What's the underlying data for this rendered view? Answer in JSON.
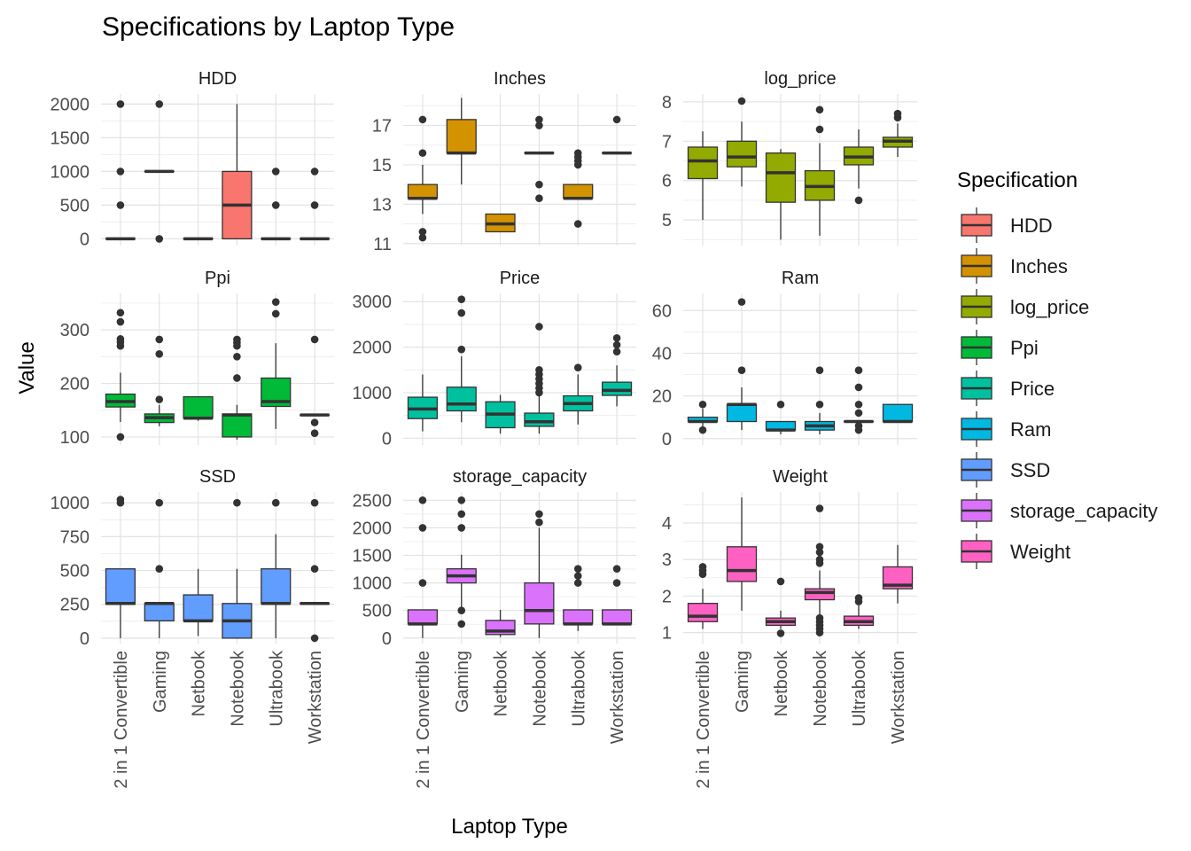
{
  "chart_data": {
    "type": "boxplot",
    "title": "Specifications by Laptop Type",
    "xlabel": "Laptop Type",
    "ylabel": "Value",
    "legend_title": "Specification",
    "legend_position": "right",
    "grid": true,
    "categories": [
      "2 in 1 Convertible",
      "Gaming",
      "Netbook",
      "Notebook",
      "Ultrabook",
      "Workstation"
    ],
    "panels": [
      {
        "name": "HDD",
        "color": "#F8766D",
        "ylim": [
          -100,
          2150
        ],
        "yticks": [
          0,
          500,
          1000,
          1500,
          2000
        ],
        "boxes": [
          {
            "q1": 0,
            "med": 0,
            "q3": 0,
            "lo": 0,
            "hi": 0,
            "out": [
              500,
              1000,
              2000
            ]
          },
          {
            "q1": 1000,
            "med": 1000,
            "q3": 1000,
            "lo": 1000,
            "hi": 1000,
            "out": [
              0,
              2000
            ]
          },
          {
            "q1": 0,
            "med": 0,
            "q3": 0,
            "lo": 0,
            "hi": 0,
            "out": []
          },
          {
            "q1": 0,
            "med": 500,
            "q3": 1000,
            "lo": 0,
            "hi": 2000,
            "out": []
          },
          {
            "q1": 0,
            "med": 0,
            "q3": 0,
            "lo": 0,
            "hi": 0,
            "out": [
              500,
              1000
            ]
          },
          {
            "q1": 0,
            "med": 0,
            "q3": 0,
            "lo": 0,
            "hi": 0,
            "out": [
              500,
              1000
            ]
          }
        ]
      },
      {
        "name": "Inches",
        "color": "#D39200",
        "ylim": [
          10.9,
          18.6
        ],
        "yticks": [
          11,
          13,
          15,
          17
        ],
        "boxes": [
          {
            "q1": 13.3,
            "med": 13.3,
            "q3": 14.0,
            "lo": 12.5,
            "hi": 15.0,
            "out": [
              11.3,
              11.6,
              15.6,
              17.3
            ]
          },
          {
            "q1": 15.6,
            "med": 15.6,
            "q3": 17.3,
            "lo": 14.0,
            "hi": 18.4,
            "out": []
          },
          {
            "q1": 11.6,
            "med": 12.0,
            "q3": 12.5,
            "lo": 11.6,
            "hi": 12.5,
            "out": []
          },
          {
            "q1": 15.6,
            "med": 15.6,
            "q3": 15.6,
            "lo": 15.6,
            "hi": 15.6,
            "out": [
              13.3,
              14.0,
              17.0,
              17.3
            ]
          },
          {
            "q1": 13.3,
            "med": 13.3,
            "q3": 14.0,
            "lo": 13.3,
            "hi": 14.0,
            "out": [
              12.0,
              15.0,
              15.2,
              15.4,
              15.6
            ]
          },
          {
            "q1": 15.6,
            "med": 15.6,
            "q3": 15.6,
            "lo": 15.6,
            "hi": 15.6,
            "out": [
              17.3
            ]
          }
        ]
      },
      {
        "name": "log_price",
        "color": "#93AA00",
        "ylim": [
          4.35,
          8.2
        ],
        "yticks": [
          5,
          6,
          7,
          8
        ],
        "boxes": [
          {
            "q1": 6.05,
            "med": 6.5,
            "q3": 6.85,
            "lo": 5.0,
            "hi": 7.25,
            "out": []
          },
          {
            "q1": 6.35,
            "med": 6.6,
            "q3": 7.0,
            "lo": 5.85,
            "hi": 7.5,
            "out": [
              8.02
            ]
          },
          {
            "q1": 5.45,
            "med": 6.2,
            "q3": 6.7,
            "lo": 4.5,
            "hi": 6.8,
            "out": []
          },
          {
            "q1": 5.5,
            "med": 5.85,
            "q3": 6.25,
            "lo": 4.6,
            "hi": 6.95,
            "out": [
              7.3,
              7.8
            ]
          },
          {
            "q1": 6.4,
            "med": 6.6,
            "q3": 6.85,
            "lo": 5.8,
            "hi": 7.3,
            "out": [
              5.5
            ]
          },
          {
            "q1": 6.85,
            "med": 7.0,
            "q3": 7.1,
            "lo": 6.6,
            "hi": 7.45,
            "out": [
              7.6,
              7.7
            ]
          }
        ]
      },
      {
        "name": "Ppi",
        "color": "#00BA38",
        "ylim": [
          85,
          368
        ],
        "yticks": [
          100,
          200,
          300
        ],
        "boxes": [
          {
            "q1": 156,
            "med": 166,
            "q3": 180,
            "lo": 128,
            "hi": 220,
            "out": [
              100,
              270,
              277,
              283,
              315,
              332
            ]
          },
          {
            "q1": 127,
            "med": 136,
            "q3": 143,
            "lo": 120,
            "hi": 160,
            "out": [
              170,
              255,
              282
            ]
          },
          {
            "q1": 135,
            "med": 135,
            "q3": 175,
            "lo": 130,
            "hi": 175,
            "out": []
          },
          {
            "q1": 100,
            "med": 141,
            "q3": 143,
            "lo": 95,
            "hi": 160,
            "out": [
              210,
              250,
              270,
              276,
              282
            ]
          },
          {
            "q1": 157,
            "med": 166,
            "q3": 210,
            "lo": 115,
            "hi": 275,
            "out": [
              330,
              352
            ]
          },
          {
            "q1": 141,
            "med": 141,
            "q3": 141,
            "lo": 141,
            "hi": 141,
            "out": [
              107,
              127,
              282
            ]
          }
        ]
      },
      {
        "name": "Price",
        "color": "#00C19F",
        "ylim": [
          -150,
          3180
        ],
        "yticks": [
          0,
          1000,
          2000,
          3000
        ],
        "boxes": [
          {
            "q1": 430,
            "med": 640,
            "q3": 900,
            "lo": 150,
            "hi": 1400,
            "out": []
          },
          {
            "q1": 600,
            "med": 750,
            "q3": 1120,
            "lo": 350,
            "hi": 1800,
            "out": [
              1950,
              2750,
              3050
            ]
          },
          {
            "q1": 230,
            "med": 530,
            "q3": 800,
            "lo": 100,
            "hi": 950,
            "out": []
          },
          {
            "q1": 260,
            "med": 360,
            "q3": 550,
            "lo": 100,
            "hi": 950,
            "out": [
              1000,
              1100,
              1200,
              1300,
              1400,
              1500,
              2450
            ]
          },
          {
            "q1": 600,
            "med": 760,
            "q3": 930,
            "lo": 300,
            "hi": 1400,
            "out": [
              1550
            ]
          },
          {
            "q1": 940,
            "med": 1050,
            "q3": 1230,
            "lo": 700,
            "hi": 1600,
            "out": [
              1900,
              2050,
              2200
            ]
          }
        ]
      },
      {
        "name": "Ram",
        "color": "#00B9E3",
        "ylim": [
          -3,
          68
        ],
        "yticks": [
          0,
          20,
          40,
          60
        ],
        "boxes": [
          {
            "q1": 8,
            "med": 8,
            "q3": 10,
            "lo": 4,
            "hi": 14,
            "out": [
              4,
              16
            ]
          },
          {
            "q1": 8,
            "med": 16,
            "q3": 16,
            "lo": 4,
            "hi": 24,
            "out": [
              32,
              64
            ]
          },
          {
            "q1": 4,
            "med": 4,
            "q3": 8,
            "lo": 2,
            "hi": 8,
            "out": [
              16
            ]
          },
          {
            "q1": 4,
            "med": 6,
            "q3": 8,
            "lo": 2,
            "hi": 12,
            "out": [
              16,
              32
            ]
          },
          {
            "q1": 8,
            "med": 8,
            "q3": 8,
            "lo": 8,
            "hi": 8,
            "out": [
              4,
              6,
              12,
              16,
              24,
              32
            ]
          },
          {
            "q1": 8,
            "med": 8,
            "q3": 16,
            "lo": 8,
            "hi": 16,
            "out": []
          }
        ]
      },
      {
        "name": "SSD",
        "color": "#619CFF",
        "ylim": [
          -40,
          1080
        ],
        "yticks": [
          0,
          250,
          500,
          750,
          1000
        ],
        "boxes": [
          {
            "q1": 250,
            "med": 256,
            "q3": 512,
            "lo": 0,
            "hi": 512,
            "out": [
              1000,
              1024
            ]
          },
          {
            "q1": 128,
            "med": 256,
            "q3": 256,
            "lo": 0,
            "hi": 256,
            "out": [
              512,
              1000
            ]
          },
          {
            "q1": 128,
            "med": 128,
            "q3": 320,
            "lo": 16,
            "hi": 512,
            "out": []
          },
          {
            "q1": 0,
            "med": 128,
            "q3": 256,
            "lo": 0,
            "hi": 512,
            "out": [
              1000
            ]
          },
          {
            "q1": 256,
            "med": 256,
            "q3": 512,
            "lo": 0,
            "hi": 768,
            "out": [
              1000
            ]
          },
          {
            "q1": 256,
            "med": 256,
            "q3": 256,
            "lo": 256,
            "hi": 256,
            "out": [
              0,
              512,
              1000
            ]
          }
        ]
      },
      {
        "name": "storage_capacity",
        "color": "#DB72FB",
        "ylim": [
          -100,
          2650
        ],
        "yticks": [
          0,
          500,
          1000,
          1500,
          2000,
          2500
        ],
        "boxes": [
          {
            "q1": 256,
            "med": 256,
            "q3": 512,
            "lo": 0,
            "hi": 512,
            "out": [
              1000,
              2000,
              2500
            ]
          },
          {
            "q1": 1000,
            "med": 1128,
            "q3": 1256,
            "lo": 500,
            "hi": 1512,
            "out": [
              256,
              500,
              2000,
              2250,
              2500
            ]
          },
          {
            "q1": 64,
            "med": 128,
            "q3": 320,
            "lo": 16,
            "hi": 512,
            "out": []
          },
          {
            "q1": 256,
            "med": 500,
            "q3": 1000,
            "lo": 0,
            "hi": 2000,
            "out": [
              2100,
              2250
            ]
          },
          {
            "q1": 256,
            "med": 256,
            "q3": 512,
            "lo": 128,
            "hi": 512,
            "out": [
              1000,
              1128,
              1256
            ]
          },
          {
            "q1": 256,
            "med": 256,
            "q3": 512,
            "lo": 256,
            "hi": 512,
            "out": [
              1000,
              1256
            ]
          }
        ]
      },
      {
        "name": "Weight",
        "color": "#FF61C3",
        "ylim": [
          0.7,
          4.85
        ],
        "yticks": [
          1,
          2,
          3,
          4
        ],
        "boxes": [
          {
            "q1": 1.3,
            "med": 1.45,
            "q3": 1.8,
            "lo": 1.1,
            "hi": 2.2,
            "out": [
              2.6,
              2.7,
              2.8
            ]
          },
          {
            "q1": 2.4,
            "med": 2.7,
            "q3": 3.35,
            "lo": 1.6,
            "hi": 4.7,
            "out": []
          },
          {
            "q1": 1.2,
            "med": 1.3,
            "q3": 1.4,
            "lo": 1.1,
            "hi": 1.6,
            "out": [
              0.98,
              2.4
            ]
          },
          {
            "q1": 1.9,
            "med": 2.1,
            "q3": 2.2,
            "lo": 1.5,
            "hi": 2.7,
            "out": [
              1.0,
              1.1,
              1.2,
              1.3,
              1.4,
              2.9,
              3.0,
              3.2,
              3.35,
              4.4
            ]
          },
          {
            "q1": 1.2,
            "med": 1.3,
            "q3": 1.45,
            "lo": 1.1,
            "hi": 1.75,
            "out": [
              1.85,
              1.95
            ]
          },
          {
            "q1": 2.2,
            "med": 2.3,
            "q3": 2.8,
            "lo": 1.8,
            "hi": 3.4,
            "out": []
          }
        ]
      }
    ]
  }
}
